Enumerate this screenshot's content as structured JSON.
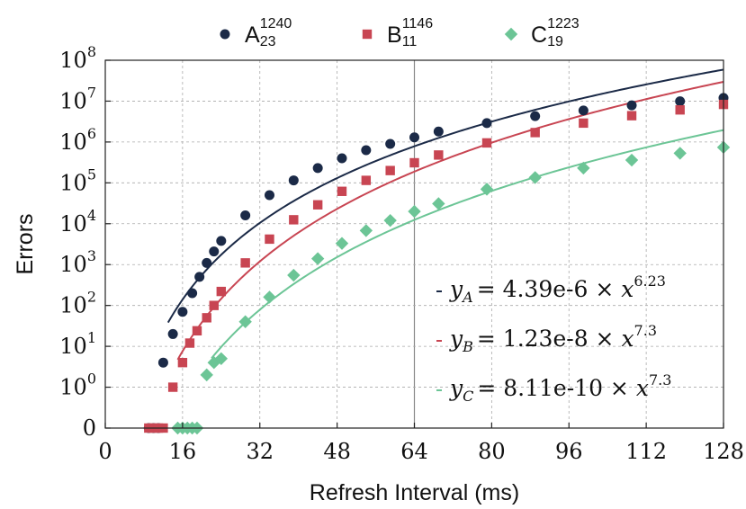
{
  "chart_data": {
    "type": "scatter",
    "xlabel": "Refresh Interval (ms)",
    "ylabel": "Errors",
    "xlim": [
      0,
      128
    ],
    "x_ticks": [
      0,
      16,
      32,
      48,
      64,
      80,
      96,
      112,
      128
    ],
    "y_scale": "symlog",
    "y_ticks": [
      {
        "value": 0,
        "base": "0",
        "exp": ""
      },
      {
        "value": 1,
        "base": "10",
        "exp": "0"
      },
      {
        "value": 10,
        "base": "10",
        "exp": "1"
      },
      {
        "value": 100,
        "base": "10",
        "exp": "2"
      },
      {
        "value": 1000,
        "base": "10",
        "exp": "3"
      },
      {
        "value": 10000,
        "base": "10",
        "exp": "4"
      },
      {
        "value": 100000,
        "base": "10",
        "exp": "5"
      },
      {
        "value": 1000000,
        "base": "10",
        "exp": "6"
      },
      {
        "value": 10000000,
        "base": "10",
        "exp": "7"
      },
      {
        "value": 100000000,
        "base": "10",
        "exp": "8"
      }
    ],
    "ylim_exp": [
      0,
      8
    ],
    "grid": true,
    "highlight_x": 64,
    "legend_position": "top",
    "series": [
      {
        "name": "A",
        "sub": "23",
        "sup": "1240",
        "marker": "circle",
        "color": "#1b2a47",
        "fit": {
          "a": 4.39e-06,
          "b": 6.23,
          "from": 13,
          "to": 128
        },
        "equation": {
          "var": "y",
          "sub": "A",
          "rhs": "= 4.39e-6 × ",
          "x": "x",
          "exp": "6.23"
        },
        "points": [
          [
            9,
            0
          ],
          [
            10,
            0
          ],
          [
            11,
            0
          ],
          [
            12,
            4
          ],
          [
            14,
            20
          ],
          [
            16,
            70
          ],
          [
            18,
            200
          ],
          [
            19.5,
            500
          ],
          [
            21,
            1100
          ],
          [
            22.5,
            2100
          ],
          [
            24,
            3800
          ],
          [
            29,
            16000
          ],
          [
            34,
            50000
          ],
          [
            39,
            115000
          ],
          [
            44,
            230000
          ],
          [
            49,
            400000
          ],
          [
            54,
            630000
          ],
          [
            59,
            900000
          ],
          [
            64,
            1300000
          ],
          [
            69,
            1800000
          ],
          [
            79,
            2900000
          ],
          [
            89,
            4300000
          ],
          [
            99,
            5900000
          ],
          [
            109,
            7900000
          ],
          [
            119,
            9900000
          ],
          [
            128,
            12000000
          ]
        ]
      },
      {
        "name": "B",
        "sub": "11",
        "sup": "1146",
        "marker": "square",
        "color": "#c84552",
        "fit": {
          "a": 1.23e-08,
          "b": 7.3,
          "from": 15,
          "to": 128
        },
        "equation": {
          "var": "y",
          "sub": "B",
          "rhs": "= 1.23e-8 × ",
          "x": "x",
          "exp": "7.3"
        },
        "points": [
          [
            9,
            0
          ],
          [
            10,
            0
          ],
          [
            11,
            0
          ],
          [
            12,
            0
          ],
          [
            14,
            1
          ],
          [
            16,
            4
          ],
          [
            17.5,
            12
          ],
          [
            19,
            24
          ],
          [
            21,
            50
          ],
          [
            22.5,
            100
          ],
          [
            24,
            220
          ],
          [
            29,
            1100
          ],
          [
            34,
            4200
          ],
          [
            39,
            12500
          ],
          [
            44,
            29000
          ],
          [
            49,
            62000
          ],
          [
            54,
            115000
          ],
          [
            59,
            200000
          ],
          [
            64,
            310000
          ],
          [
            69,
            480000
          ],
          [
            79,
            950000
          ],
          [
            89,
            1700000
          ],
          [
            99,
            2900000
          ],
          [
            109,
            4400000
          ],
          [
            119,
            6100000
          ],
          [
            128,
            8300000
          ]
        ]
      },
      {
        "name": "C",
        "sub": "19",
        "sup": "1223",
        "marker": "diamond",
        "color": "#6cc596",
        "fit": {
          "a": 8.11e-10,
          "b": 7.3,
          "from": 22,
          "to": 128
        },
        "equation": {
          "var": "y",
          "sub": "C",
          "rhs": "= 8.11e-10 × ",
          "x": "x",
          "exp": "7.3"
        },
        "points": [
          [
            15,
            0
          ],
          [
            16,
            0
          ],
          [
            17,
            0
          ],
          [
            18,
            0
          ],
          [
            19,
            0
          ],
          [
            21,
            2
          ],
          [
            22.5,
            4
          ],
          [
            24,
            5
          ],
          [
            29,
            40
          ],
          [
            34,
            160
          ],
          [
            39,
            550
          ],
          [
            44,
            1400
          ],
          [
            49,
            3300
          ],
          [
            54,
            6800
          ],
          [
            59,
            12000
          ],
          [
            64,
            20000
          ],
          [
            69,
            31000
          ],
          [
            79,
            70000
          ],
          [
            89,
            135000
          ],
          [
            99,
            230000
          ],
          [
            109,
            360000
          ],
          [
            119,
            530000
          ],
          [
            128,
            740000
          ]
        ]
      }
    ]
  }
}
